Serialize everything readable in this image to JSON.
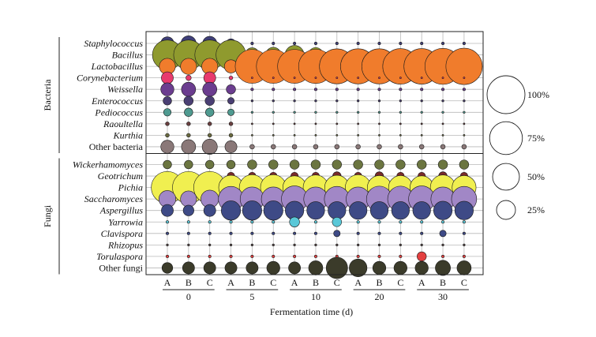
{
  "chart_data": {
    "type": "bubble",
    "xlabel": "Fermentation time (d)",
    "x_samples": [
      "A",
      "B",
      "C",
      "A",
      "B",
      "C",
      "A",
      "B",
      "C",
      "A",
      "B",
      "C",
      "A",
      "B",
      "C"
    ],
    "x_groups": [
      {
        "label": "0",
        "samples": [
          0,
          1,
          2
        ]
      },
      {
        "label": "5",
        "samples": [
          3,
          4,
          5
        ]
      },
      {
        "label": "10",
        "samples": [
          6,
          7,
          8
        ]
      },
      {
        "label": "20",
        "samples": [
          9,
          10,
          11
        ]
      },
      {
        "label": "30",
        "samples": [
          12,
          13,
          14
        ]
      }
    ],
    "row_groups": [
      {
        "label": "Bacteria",
        "rows": [
          0,
          1,
          2,
          3,
          4,
          5,
          6,
          7,
          8,
          9
        ]
      },
      {
        "label": "Fungi",
        "rows": [
          10,
          11,
          12,
          13,
          14,
          15,
          16,
          17,
          18,
          19
        ]
      }
    ],
    "series": [
      {
        "name": "Staphylococcus",
        "italic": true,
        "color": "#3f3f7a",
        "values": [
          12,
          16,
          14,
          6,
          0.5,
          0.5,
          0.5,
          0.5,
          0.5,
          0.5,
          0.5,
          0.5,
          0.5,
          0.5,
          0.5
        ]
      },
      {
        "name": "Bacillus",
        "italic": true,
        "color": "#8f9a2e",
        "values": [
          62,
          62,
          62,
          62,
          14,
          16,
          25,
          15,
          10,
          8,
          8,
          8,
          8,
          6,
          4
        ]
      },
      {
        "name": "Lactobacillus",
        "italic": true,
        "color": "#f07c2c",
        "values": [
          18,
          18,
          18,
          12,
          80,
          80,
          80,
          82,
          85,
          86,
          86,
          88,
          88,
          90,
          92
        ]
      },
      {
        "name": "Corynebacterium",
        "italic": true,
        "color": "#e83a6e",
        "values": [
          10,
          2,
          10,
          1,
          0.2,
          0.2,
          0.2,
          0.2,
          0.2,
          0.2,
          0.2,
          0.2,
          0.2,
          0.2,
          0.2
        ]
      },
      {
        "name": "Weissella",
        "italic": true,
        "color": "#6b3d8f",
        "values": [
          12,
          14,
          14,
          6,
          0.5,
          0.5,
          0.5,
          0.5,
          0.5,
          0.5,
          0.5,
          0.5,
          0.5,
          0.5,
          0.5
        ]
      },
      {
        "name": "Enterococcus",
        "italic": true,
        "color": "#4a3f73",
        "values": [
          5,
          6,
          6,
          3,
          0.3,
          0.3,
          0.3,
          0.3,
          0.3,
          0.3,
          0.3,
          0.3,
          0.3,
          0.3,
          0.3
        ]
      },
      {
        "name": "Pediococcus",
        "italic": true,
        "color": "#4f9a90",
        "values": [
          4,
          5,
          5,
          3,
          0.3,
          0.3,
          0.3,
          0.3,
          0.3,
          0.3,
          0.3,
          0.3,
          0.3,
          0.3,
          0.3
        ]
      },
      {
        "name": "Raoultella",
        "italic": true,
        "color": "#6a3f3f",
        "values": [
          1,
          1,
          1,
          1,
          0.2,
          0.2,
          0.2,
          0.2,
          0.2,
          0.2,
          0.2,
          0.2,
          0.2,
          0.2,
          0.2
        ]
      },
      {
        "name": "Kurthia",
        "italic": true,
        "color": "#6a6a40",
        "values": [
          1,
          1,
          1,
          1,
          0.2,
          0.2,
          0.2,
          0.2,
          0.2,
          0.2,
          0.2,
          0.2,
          0.2,
          0.2,
          0.2
        ]
      },
      {
        "name": "Other bacteria",
        "italic": false,
        "color": "#8a7878",
        "values": [
          12,
          14,
          16,
          10,
          1.5,
          1.5,
          1.5,
          1.5,
          1.5,
          1.5,
          1.5,
          1.5,
          1.5,
          1.5,
          1.5
        ]
      },
      {
        "name": "Wickerhamomyces",
        "italic": true,
        "color": "#6b7540",
        "values": [
          5,
          5,
          5,
          5,
          6,
          6,
          6,
          6,
          6,
          6,
          6,
          6,
          6,
          6,
          6
        ]
      },
      {
        "name": "Geotrichum",
        "italic": true,
        "color": "#7a2a2a",
        "values": [
          6,
          5,
          6,
          4,
          4,
          4,
          4,
          4,
          5,
          4,
          5,
          4,
          4,
          5,
          4
        ]
      },
      {
        "name": "Pichia",
        "italic": true,
        "color": "#f0ef50",
        "values": [
          72,
          72,
          72,
          42,
          46,
          46,
          38,
          44,
          42,
          46,
          40,
          40,
          38,
          44,
          40
        ]
      },
      {
        "name": "Saccharomyces",
        "italic": true,
        "color": "#a187c6",
        "values": [
          20,
          18,
          22,
          44,
          40,
          40,
          48,
          40,
          44,
          40,
          46,
          46,
          48,
          40,
          44
        ]
      },
      {
        "name": "Aspergillus",
        "italic": true,
        "color": "#3e4a86",
        "values": [
          10,
          8,
          10,
          26,
          26,
          26,
          24,
          22,
          22,
          22,
          22,
          22,
          22,
          24,
          24
        ]
      },
      {
        "name": "Yarrowia",
        "italic": true,
        "color": "#5ac8d8",
        "values": [
          0.5,
          0.5,
          0.5,
          0.5,
          0.5,
          0.5,
          7,
          0.5,
          6,
          0.5,
          0.5,
          0.5,
          0.5,
          0.5,
          0.5
        ]
      },
      {
        "name": "Clavispora",
        "italic": true,
        "color": "#3e4a86",
        "values": [
          0.5,
          0.5,
          0.5,
          0.5,
          0.5,
          0.5,
          0.5,
          0.5,
          3,
          0.5,
          0.5,
          0.5,
          0.5,
          3,
          0.5
        ]
      },
      {
        "name": "Rhizopus",
        "italic": true,
        "color": "#5a4a4a",
        "values": [
          0.3,
          0.3,
          0.3,
          0.3,
          0.3,
          0.3,
          0.3,
          0.3,
          0.3,
          0.3,
          0.3,
          0.3,
          0.3,
          0.3,
          0.3
        ]
      },
      {
        "name": "Torulaspora",
        "italic": true,
        "color": "#e34040",
        "values": [
          0.5,
          0.5,
          0.5,
          0.5,
          0.5,
          0.5,
          0.5,
          0.5,
          0.5,
          0.5,
          0.5,
          0.5,
          6,
          0.5,
          0.5
        ]
      },
      {
        "name": "Other fungi",
        "italic": false,
        "color": "#3b3b2a",
        "values": [
          8,
          10,
          10,
          10,
          10,
          12,
          10,
          14,
          32,
          22,
          12,
          12,
          12,
          16,
          14
        ]
      }
    ],
    "legend": [
      {
        "label": "100%",
        "value": 100
      },
      {
        "label": "75%",
        "value": 75
      },
      {
        "label": "50%",
        "value": 50
      },
      {
        "label": "25%",
        "value": 25
      }
    ],
    "legend_position": "right",
    "grid": true
  }
}
